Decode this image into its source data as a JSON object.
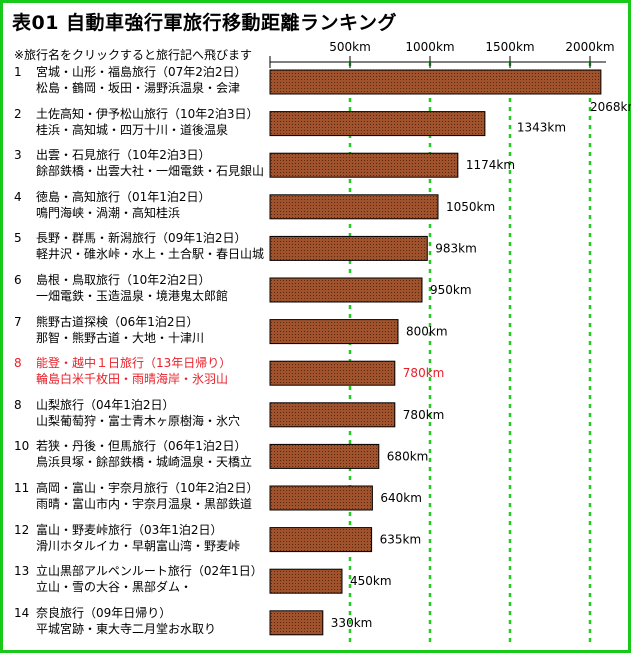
{
  "title": "表01 自動車強行軍旅行移動距離ランキング",
  "note": "※旅行名をクリックすると旅行記へ飛びます",
  "colors": {
    "bar_fill": "#a0522d",
    "bar_border": "#000000",
    "grid": "#22cc22",
    "frame": "#19c919",
    "highlight": "#e8202a"
  },
  "chart_data": {
    "type": "bar",
    "orientation": "horizontal",
    "x_ticks": [
      "500km",
      "1000km",
      "1500km",
      "2000km"
    ],
    "xlim": [
      0,
      2100
    ],
    "unit": "km",
    "entries": [
      {
        "rank": "1",
        "name": "宮城・山形・福島旅行（07年2泊2日）",
        "places": "松島・鶴岡・坂田・湯野浜温泉・会津",
        "value": 2068,
        "label": "2068km",
        "highlight": false
      },
      {
        "rank": "2",
        "name": "土佐高知・伊予松山旅行（10年2泊3日）",
        "places": "桂浜・高知城・四万十川・道後温泉",
        "value": 1343,
        "label": "1343km",
        "highlight": false
      },
      {
        "rank": "3",
        "name": "出雲・石見旅行（10年2泊3日）",
        "places": "餘部鉄橋・出雲大社・一畑電鉄・石見銀山",
        "value": 1174,
        "label": "1174km",
        "highlight": false
      },
      {
        "rank": "4",
        "name": "徳島・高知旅行（01年1泊2日）",
        "places": "鳴門海峡・渦潮・高知桂浜",
        "value": 1050,
        "label": "1050km",
        "highlight": false
      },
      {
        "rank": "5",
        "name": "長野・群馬・新潟旅行（09年1泊2日）",
        "places": "軽井沢・碓氷峠・水上・土合駅・春日山城",
        "value": 983,
        "label": "983km",
        "highlight": false
      },
      {
        "rank": "6",
        "name": "島根・鳥取旅行（10年2泊2日）",
        "places": "一畑電鉄・玉造温泉・境港鬼太郎館",
        "value": 950,
        "label": "950km",
        "highlight": false
      },
      {
        "rank": "7",
        "name": "熊野古道探検（06年1泊2日）",
        "places": "那智・熊野古道・大地・十津川",
        "value": 800,
        "label": "800km",
        "highlight": false
      },
      {
        "rank": "8",
        "name": "能登・越中１日旅行（13年日帰り）",
        "places": "輪島白米千枚田・雨晴海岸・氷羽山",
        "value": 780,
        "label": "780km",
        "highlight": true
      },
      {
        "rank": "8",
        "name": "山梨旅行（04年1泊2日）",
        "places": "山梨葡萄狩・富士青木ヶ原樹海・氷穴",
        "value": 780,
        "label": "780km",
        "highlight": false
      },
      {
        "rank": "10",
        "name": "若狭・丹後・但馬旅行（06年1泊2日）",
        "places": "鳥浜貝塚・餘部鉄橋・城崎温泉・天橋立",
        "value": 680,
        "label": "680km",
        "highlight": false
      },
      {
        "rank": "11",
        "name": "高岡・富山・宇奈月旅行（10年2泊2日）",
        "places": "雨晴・富山市内・宇奈月温泉・黒部鉄道",
        "value": 640,
        "label": "640km",
        "highlight": false
      },
      {
        "rank": "12",
        "name": "富山・野麦峠旅行（03年1泊2日）",
        "places": "滑川ホタルイカ・早朝富山湾・野麦峠",
        "value": 635,
        "label": "635km",
        "highlight": false
      },
      {
        "rank": "13",
        "name": "立山黒部アルペンルート旅行（02年1日）",
        "places": "立山・雪の大谷・黒部ダム・",
        "value": 450,
        "label": "450km",
        "highlight": false
      },
      {
        "rank": "14",
        "name": "奈良旅行（09年日帰り）",
        "places": "平城宮跡・東大寺二月堂お水取り",
        "value": 330,
        "label": "330km",
        "highlight": false
      }
    ]
  }
}
